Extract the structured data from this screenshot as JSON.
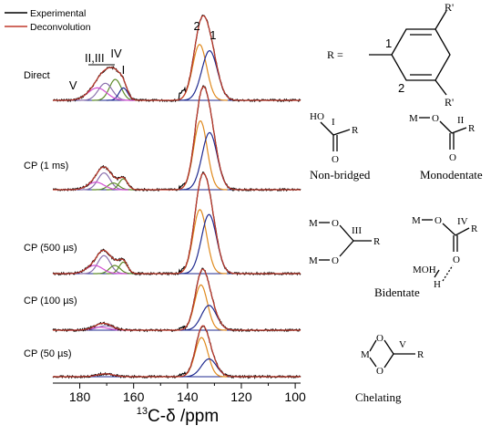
{
  "chart_data": {
    "type": "line",
    "xlabel": "13C-δ /ppm",
    "xlabel_parts": {
      "sup": "13",
      "main": "C-δ /ppm"
    },
    "xlim": [
      190,
      98
    ],
    "xticks": [
      180,
      160,
      140,
      120,
      100
    ],
    "legend": {
      "position": "top-left",
      "entries": [
        {
          "name": "Experimental",
          "color": "#000000"
        },
        {
          "name": "Deconvolution",
          "color": "#c0392b"
        }
      ]
    },
    "component_colors": {
      "c1": "#1f2a8f",
      "c2": "#e08a1e",
      "cIV": "#5e8c2a",
      "cIII": "#8a6fae",
      "cV": "#d24fd2",
      "base": "#1f2a8f"
    },
    "peak_labels": [
      {
        "text": "2",
        "x": 136.5
      },
      {
        "text": "1",
        "x": 130.5
      },
      {
        "text": "II,III",
        "x": 174.5
      },
      {
        "text": "IV",
        "x": 166.5
      },
      {
        "text": "I",
        "x": 163.8
      },
      {
        "text": "V",
        "x": 182.5
      }
    ],
    "spectra": [
      {
        "name": "Direct",
        "components": [
          {
            "id": "c2",
            "center": 135.5,
            "height": 0.72,
            "width": 2.6
          },
          {
            "id": "c1",
            "center": 131.8,
            "height": 0.64,
            "width": 2.9
          },
          {
            "id": "cIV",
            "center": 166.8,
            "height": 0.27,
            "width": 2.2
          },
          {
            "id": "cIII",
            "center": 170.5,
            "height": 0.22,
            "width": 2.6
          },
          {
            "id": "c1",
            "center": 163.8,
            "height": 0.16,
            "width": 1.6
          },
          {
            "id": "cV",
            "center": 173.5,
            "height": 0.16,
            "width": 3.5
          }
        ]
      },
      {
        "name": "CP (1 ms)",
        "components": [
          {
            "id": "c2",
            "center": 135.2,
            "height": 0.82,
            "width": 2.5
          },
          {
            "id": "c1",
            "center": 131.8,
            "height": 0.68,
            "width": 2.8
          },
          {
            "id": "cIII",
            "center": 171.0,
            "height": 0.2,
            "width": 2.3
          },
          {
            "id": "cIV",
            "center": 167.5,
            "height": 0.08,
            "width": 2.0
          },
          {
            "id": "cIV",
            "center": 163.8,
            "height": 0.13,
            "width": 1.6
          },
          {
            "id": "cV",
            "center": 174.0,
            "height": 0.09,
            "width": 3.0
          }
        ]
      },
      {
        "name": "CP (500 µs)",
        "components": [
          {
            "id": "c2",
            "center": 135.4,
            "height": 0.78,
            "width": 2.5
          },
          {
            "id": "c1",
            "center": 132.0,
            "height": 0.72,
            "width": 2.8
          },
          {
            "id": "cIII",
            "center": 171.0,
            "height": 0.22,
            "width": 2.3
          },
          {
            "id": "cIV",
            "center": 167.0,
            "height": 0.1,
            "width": 2.0
          },
          {
            "id": "cIV",
            "center": 163.8,
            "height": 0.14,
            "width": 1.6
          },
          {
            "id": "cV",
            "center": 174.5,
            "height": 0.1,
            "width": 3.0
          }
        ]
      },
      {
        "name": "CP (100 µs)",
        "components": [
          {
            "id": "c2",
            "center": 135.0,
            "height": 0.62,
            "width": 2.4
          },
          {
            "id": "c1",
            "center": 132.0,
            "height": 0.34,
            "width": 2.8
          },
          {
            "id": "cIII",
            "center": 170.5,
            "height": 0.06,
            "width": 3.0
          },
          {
            "id": "cV",
            "center": 172.5,
            "height": 0.04,
            "width": 3.0
          }
        ]
      },
      {
        "name": "CP (50 µs)",
        "components": [
          {
            "id": "c2",
            "center": 134.8,
            "height": 0.55,
            "width": 2.4
          },
          {
            "id": "c1",
            "center": 132.0,
            "height": 0.25,
            "width": 2.8
          },
          {
            "id": "cIII",
            "center": 170.5,
            "height": 0.04,
            "width": 3.0
          }
        ]
      }
    ]
  },
  "structures": {
    "aryl": {
      "R": "R =",
      "rp_top": "R'",
      "rp_bottom": "R'",
      "pos1": "1",
      "pos2": "2"
    },
    "nonbridged": {
      "caption": "Non-bridged",
      "HO": "HO",
      "R": "R",
      "O": "O",
      "numeral": "I"
    },
    "monodentate": {
      "caption": "Monodentate",
      "M": "M",
      "O1": "O",
      "O2": "O",
      "R": "R",
      "numeral": "II"
    },
    "bidentate_a": {
      "M1": "M",
      "M2": "M",
      "O1": "O",
      "O2": "O",
      "R": "R",
      "numeral": "III"
    },
    "bidentate_b": {
      "M": "M",
      "O1": "O",
      "O2": "O",
      "R": "R",
      "MOH": "MOH",
      "H": "H",
      "numeral": "IV"
    },
    "bidentate_caption": "Bidentate",
    "chelating": {
      "caption": "Chelating",
      "M": "M",
      "O1": "O",
      "O2": "O",
      "R": "R",
      "numeral": "V"
    }
  }
}
